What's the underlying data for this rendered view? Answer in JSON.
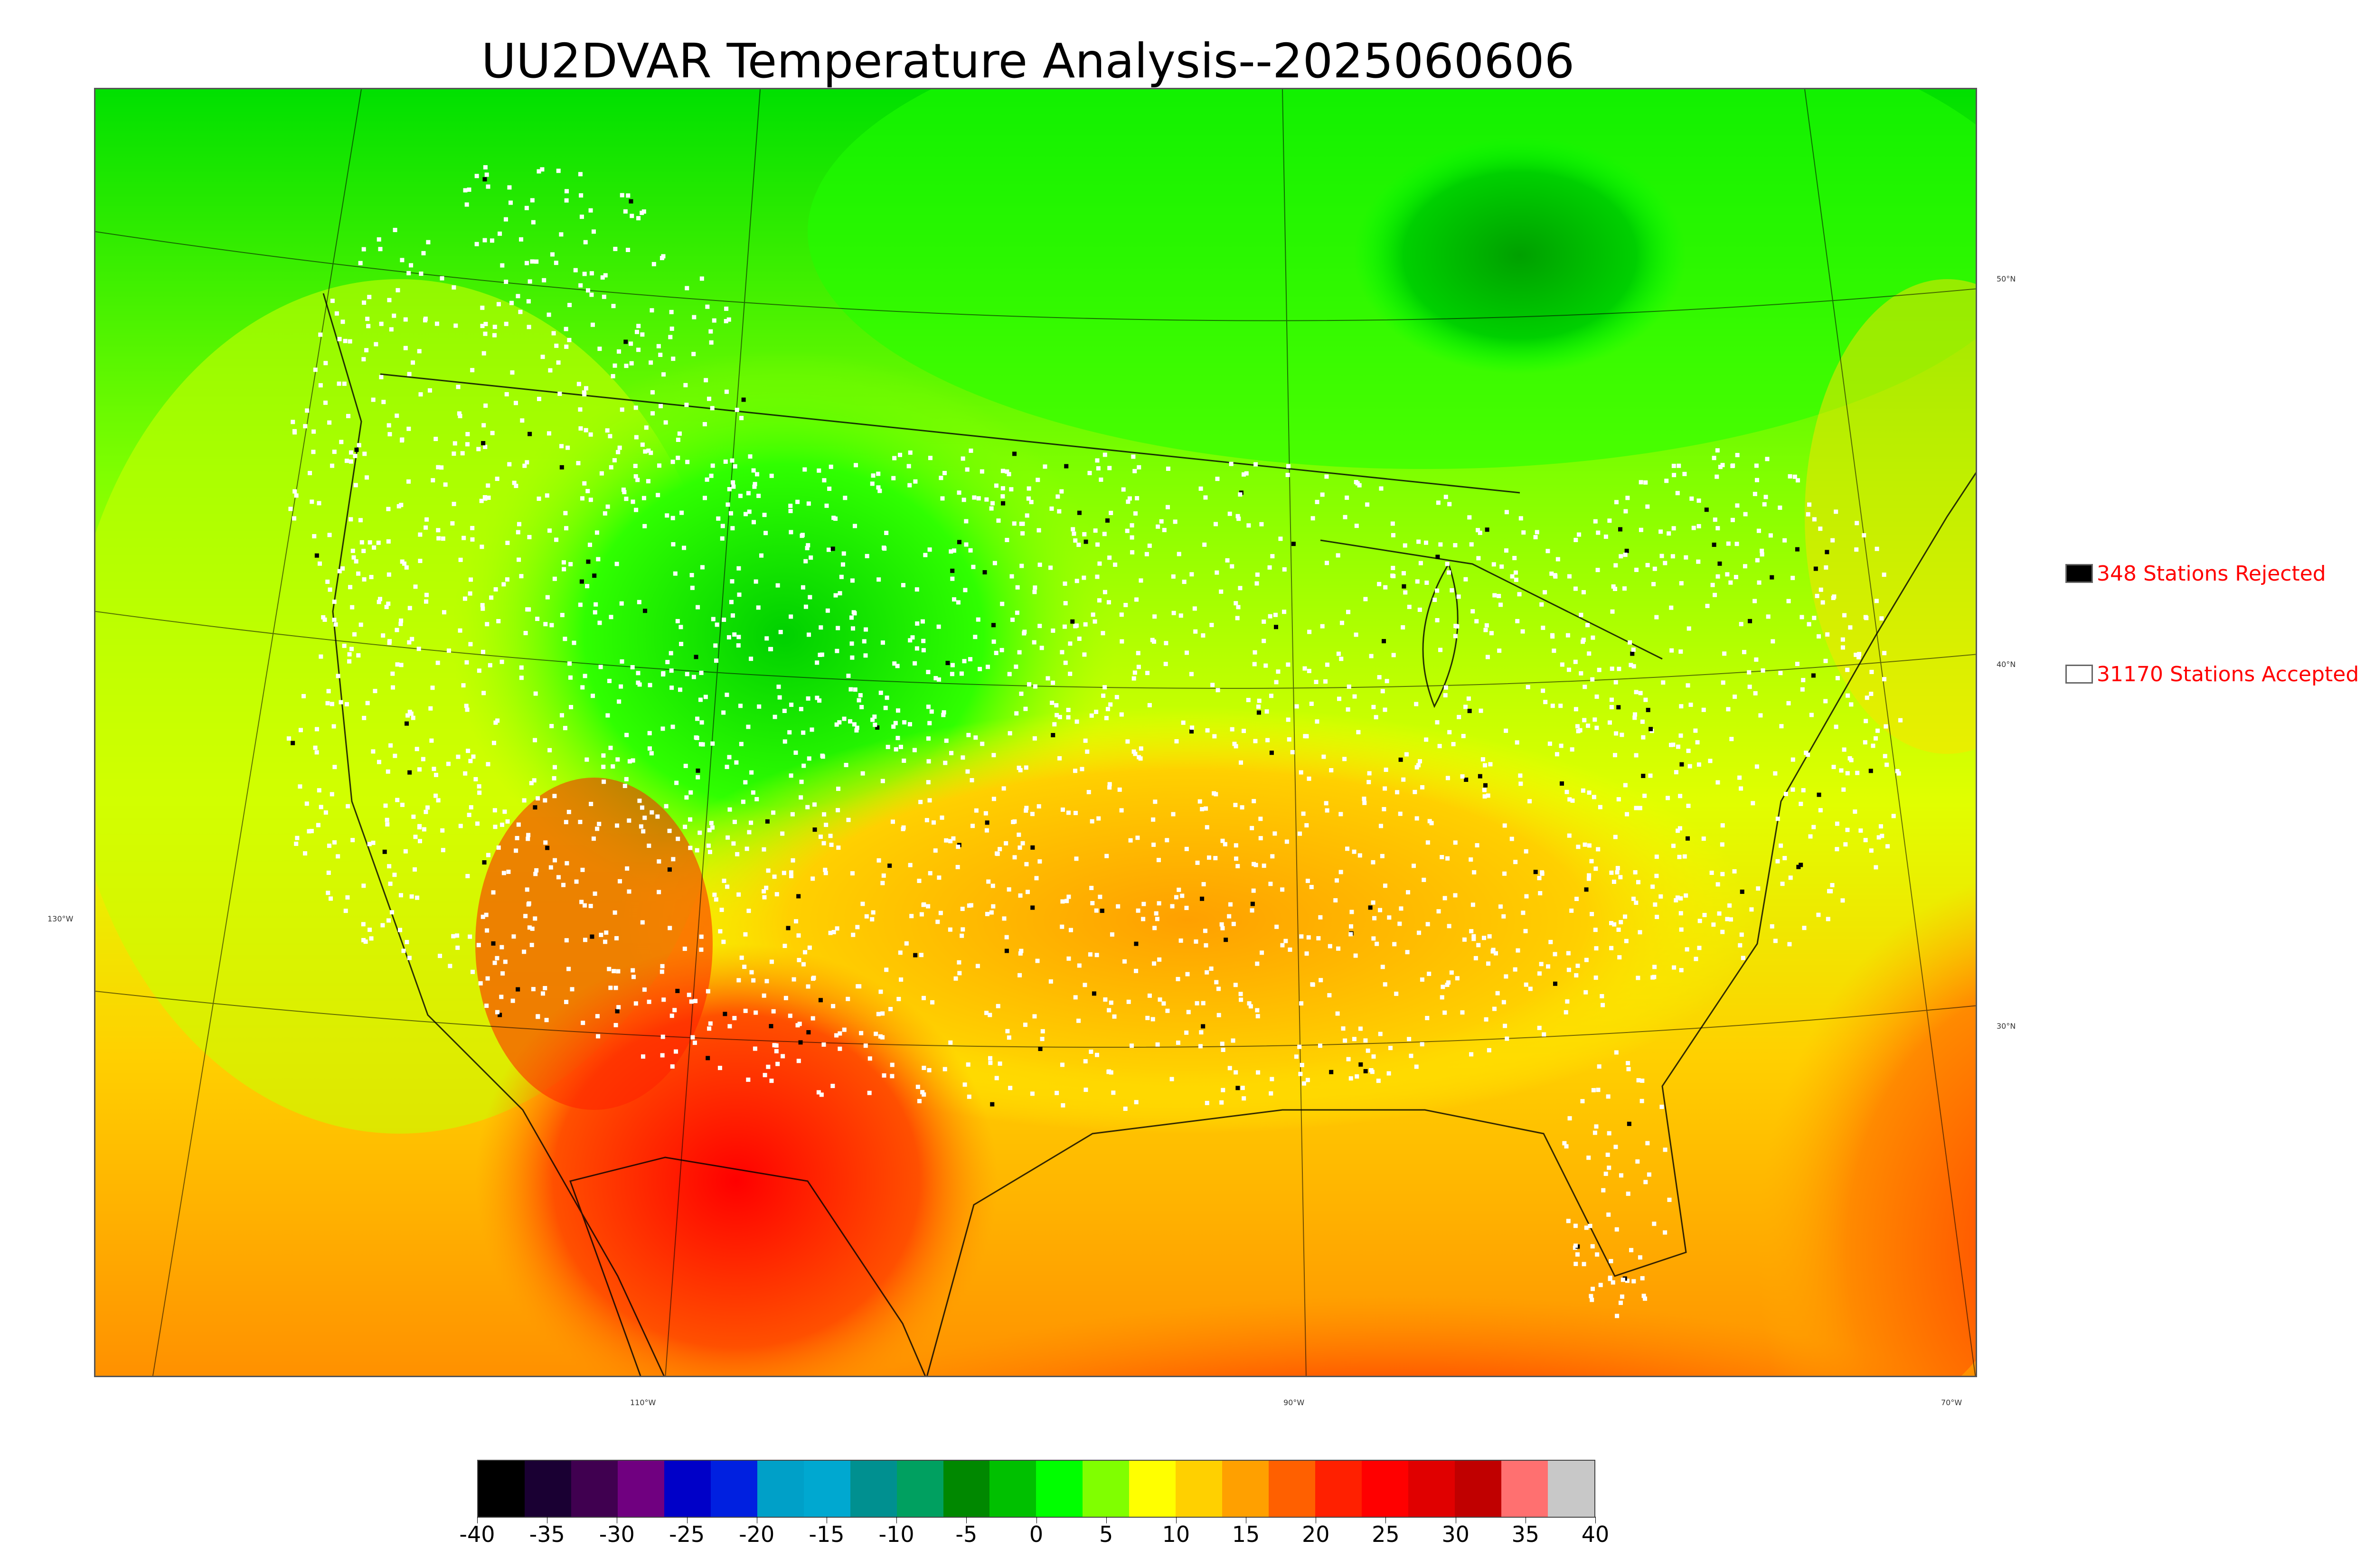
{
  "title": "UU2DVAR Temperature Analysis--2025060606",
  "graticule_labels": {
    "lat50": "50°N",
    "lat40": "40°N",
    "lat30": "30°N",
    "lon130": "130°W",
    "lon110": "110°W",
    "lon90": "90°W",
    "lon70": "70°W"
  },
  "legend": {
    "rejected": {
      "label": "348 Stations Rejected",
      "swatch_color": "#000000"
    },
    "accepted": {
      "label": "31170 Stations Accepted",
      "swatch_color": "#ffffff"
    }
  },
  "colorbar": {
    "ticks": [
      "-40",
      "-35",
      "-30",
      "-25",
      "-20",
      "-15",
      "-10",
      "-5",
      "0",
      "5",
      "10",
      "15",
      "20",
      "25",
      "30",
      "35",
      "40"
    ],
    "colors": [
      "#000000",
      "#1a0033",
      "#400050",
      "#700080",
      "#0000c8",
      "#0020e0",
      "#00a0c8",
      "#00a8d0",
      "#009090",
      "#00a060",
      "#008800",
      "#00c000",
      "#00ff00",
      "#80ff00",
      "#ffff00",
      "#ffd000",
      "#ffa000",
      "#ff6000",
      "#ff2000",
      "#ff0000",
      "#e00000",
      "#c00000",
      "#ff7070",
      "#c8c8c8"
    ]
  },
  "colors": {
    "stations_accepted": "#ffffff",
    "stations_rejected": "#000000",
    "legend_text": "#ff0000"
  }
}
